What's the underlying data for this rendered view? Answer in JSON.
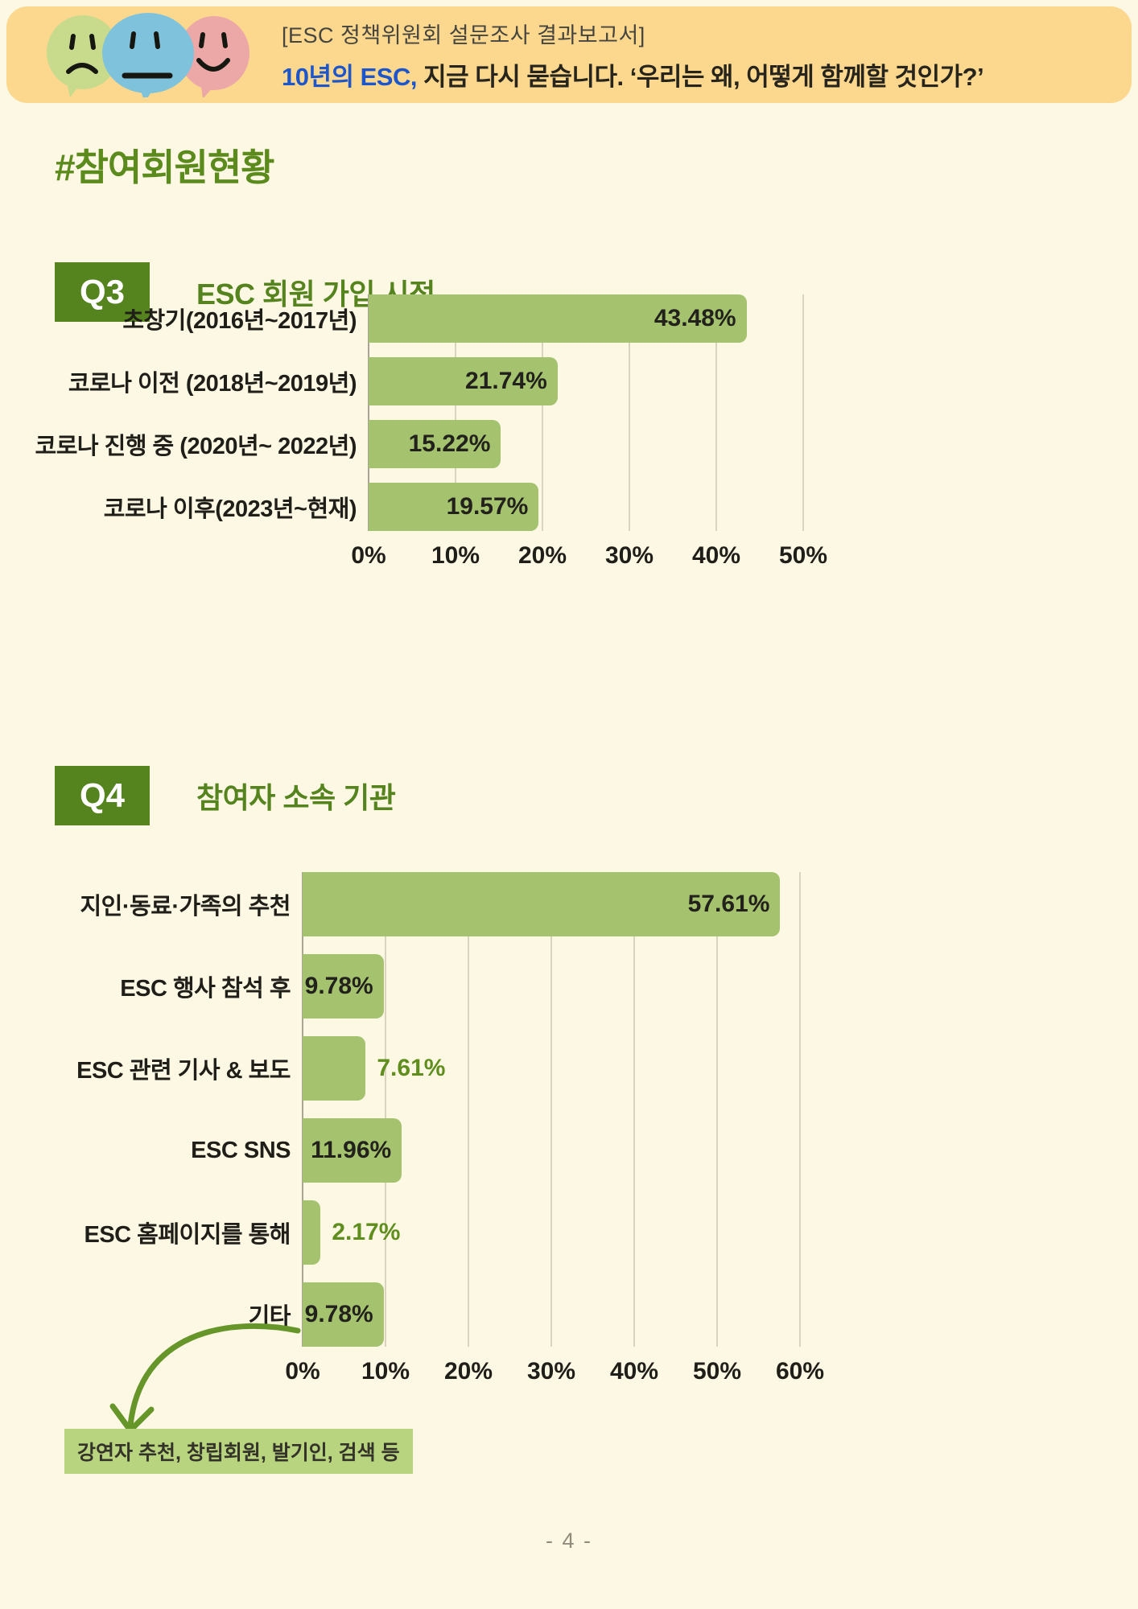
{
  "header": {
    "kicker": "[ESC 정책위원회 설문조사 결과보고서]",
    "title_highlight": "10년의 ESC,",
    "title_rest": " 지금 다시 묻습니다. ‘우리는 왜, 어떻게 함께할 것인가?’",
    "icon": "three-speech-bubbles-with-faces"
  },
  "section": {
    "title": "#참여회원현황"
  },
  "q3": {
    "badge_label": "Q3",
    "title": "ESC 회원 가입 시점"
  },
  "q4": {
    "badge_label": "Q4",
    "title": "참여자 소속 기관"
  },
  "note": {
    "text": "강연자 추천, 창립회원, 발기인, 검색 등",
    "arrow_icon": "curved-arrow-down-left"
  },
  "page_number": "- 4 -",
  "colors": {
    "page_bg": "#FCF8E4",
    "header_bg": "#FBD88D",
    "bar_green": "#A5C36F",
    "accent_green": "#55831E",
    "outside_value_green": "#5F8E1E",
    "note_bg": "#B9D47F",
    "highlight_blue": "#1D55CB",
    "gridline": "#D9D3BF",
    "bubble_green": "#C8DB8D",
    "bubble_blue": "#7EC3DB",
    "bubble_pink": "#ECA7A7"
  },
  "chart_data": [
    {
      "id": "q3",
      "type": "bar",
      "orientation": "horizontal",
      "title": "ESC 회원 가입 시점",
      "categories": [
        "초창기(2016년~2017년)",
        "코로나 이전 (2018년~2019년)",
        "코로나 진행 중 (2020년~ 2022년)",
        "코로나 이후(2023년~현재)"
      ],
      "values": [
        43.48,
        21.74,
        15.22,
        19.57
      ],
      "value_labels": [
        "43.48%",
        "21.74%",
        "15.22%",
        "19.57%"
      ],
      "label_inside": [
        true,
        true,
        true,
        true
      ],
      "xlim": [
        0,
        50
      ],
      "ticks": [
        "0%",
        "10%",
        "20%",
        "30%",
        "40%",
        "50%"
      ],
      "grid": true,
      "legend": "none"
    },
    {
      "id": "q4",
      "type": "bar",
      "orientation": "horizontal",
      "title": "참여자 소속 기관",
      "categories": [
        "지인·동료·가족의 추천",
        "ESC 행사 참석 후",
        "ESC 관련 기사 & 보도",
        "ESC SNS",
        "ESC 홈페이지를 통해",
        "기타"
      ],
      "values": [
        57.61,
        9.78,
        7.61,
        11.96,
        2.17,
        9.78
      ],
      "value_labels": [
        "57.61%",
        "9.78%",
        "7.61%",
        "11.96%",
        "2.17%",
        "9.78%"
      ],
      "label_inside": [
        true,
        true,
        false,
        true,
        false,
        true
      ],
      "xlim": [
        0,
        60
      ],
      "ticks": [
        "0%",
        "10%",
        "20%",
        "30%",
        "40%",
        "50%",
        "60%"
      ],
      "grid": true,
      "legend": "none"
    }
  ]
}
